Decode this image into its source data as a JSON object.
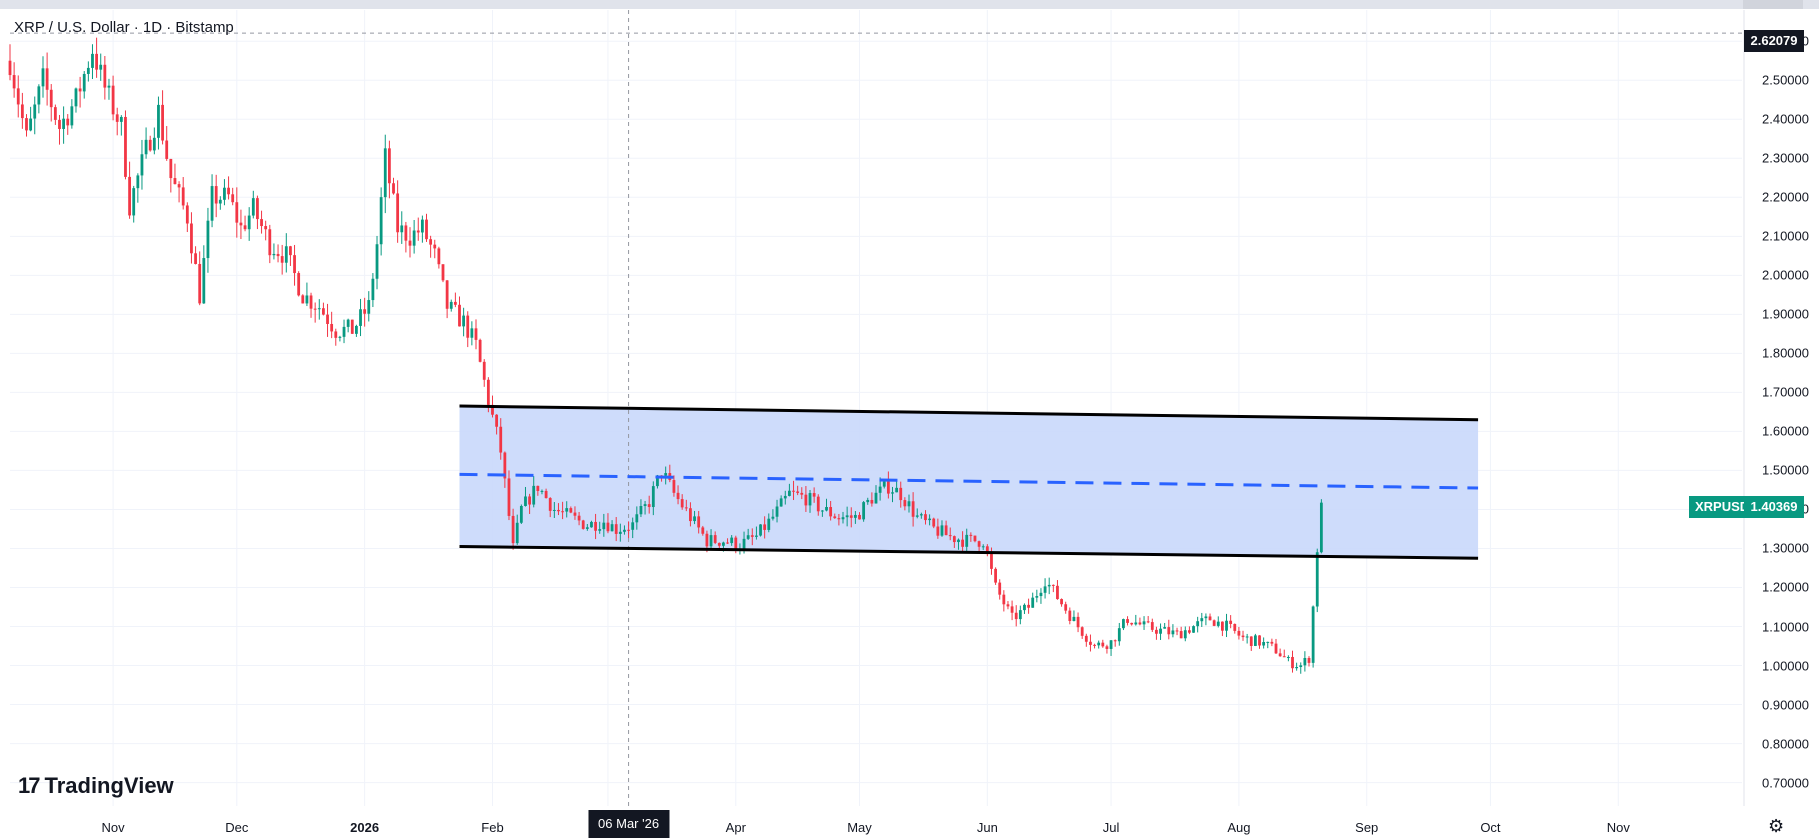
{
  "header": {
    "title": "XRP / U.S. Dollar · 1D · Bitstamp"
  },
  "brand": {
    "logo": "17",
    "name": "TradingView"
  },
  "crosshair": {
    "x_label": "06 Mar '26",
    "y_label": "2.62079"
  },
  "last_price": {
    "symbol": "XRPUSD",
    "value": "1.40369"
  },
  "settings": {
    "icon": "gear-icon"
  },
  "colors": {
    "up": "#089981",
    "down": "#f23645",
    "band": "#c9d8fb",
    "midline": "#2962ff",
    "border": "#000000"
  },
  "chart_data": {
    "type": "candlestick",
    "title": "XRP / U.S. Dollar · 1D · Bitstamp",
    "ylim": [
      0.64,
      2.68
    ],
    "yticks": [
      "0.70000",
      "0.80000",
      "0.90000",
      "1.00000",
      "1.10000",
      "1.20000",
      "1.30000",
      "1.40000",
      "1.50000",
      "1.60000",
      "1.70000",
      "1.80000",
      "1.90000",
      "2.00000",
      "2.10000",
      "2.20000",
      "2.30000",
      "2.40000",
      "2.50000",
      "2.60000"
    ],
    "xticks": [
      {
        "label": "Nov",
        "date": "2025-11-01"
      },
      {
        "label": "Dec",
        "date": "2025-12-01"
      },
      {
        "label": "2026",
        "date": "2026-01-01",
        "bold": true
      },
      {
        "label": "Feb",
        "date": "2026-02-01"
      },
      {
        "label": "Mar",
        "date": "2026-03-01",
        "hidden_by_crosshair": true
      },
      {
        "label": "Apr",
        "date": "2026-04-01"
      },
      {
        "label": "May",
        "date": "2026-05-01"
      },
      {
        "label": "Jun",
        "date": "2026-06-01"
      },
      {
        "label": "Jul",
        "date": "2026-07-01"
      },
      {
        "label": "Aug",
        "date": "2026-08-01"
      },
      {
        "label": "Sep",
        "date": "2026-09-01"
      },
      {
        "label": "Oct",
        "date": "2026-10-01"
      },
      {
        "label": "Nov",
        "date": "2026-11-01"
      }
    ],
    "xrange": [
      "2025-10-07",
      "2026-12-01"
    ],
    "path": [
      [
        "2025-10-07",
        2.55
      ],
      [
        "2025-10-11",
        2.35
      ],
      [
        "2025-10-15",
        2.5
      ],
      [
        "2025-10-19",
        2.38
      ],
      [
        "2025-10-23",
        2.45
      ],
      [
        "2025-10-27",
        2.58
      ],
      [
        "2025-10-30",
        2.48
      ],
      [
        "2025-11-03",
        2.38
      ],
      [
        "2025-11-05",
        2.18
      ],
      [
        "2025-11-09",
        2.32
      ],
      [
        "2025-11-12",
        2.42
      ],
      [
        "2025-11-15",
        2.25
      ],
      [
        "2025-11-19",
        2.15
      ],
      [
        "2025-11-22",
        1.95
      ],
      [
        "2025-11-25",
        2.2
      ],
      [
        "2025-11-29",
        2.2
      ],
      [
        "2025-12-02",
        2.12
      ],
      [
        "2025-12-05",
        2.17
      ],
      [
        "2025-12-09",
        2.08
      ],
      [
        "2025-12-13",
        2.05
      ],
      [
        "2025-12-17",
        1.95
      ],
      [
        "2025-12-21",
        1.92
      ],
      [
        "2025-12-25",
        1.86
      ],
      [
        "2025-12-29",
        1.86
      ],
      [
        "2026-01-02",
        1.92
      ],
      [
        "2026-01-04",
        2.08
      ],
      [
        "2026-01-06",
        2.3
      ],
      [
        "2026-01-09",
        2.12
      ],
      [
        "2026-01-12",
        2.1
      ],
      [
        "2026-01-15",
        2.12
      ],
      [
        "2026-01-18",
        2.05
      ],
      [
        "2026-01-21",
        1.92
      ],
      [
        "2026-01-25",
        1.88
      ],
      [
        "2026-01-28",
        1.82
      ],
      [
        "2026-01-31",
        1.68
      ],
      [
        "2026-02-03",
        1.55
      ],
      [
        "2026-02-06",
        1.3
      ],
      [
        "2026-02-08",
        1.4
      ],
      [
        "2026-02-12",
        1.46
      ],
      [
        "2026-02-16",
        1.4
      ],
      [
        "2026-02-20",
        1.38
      ],
      [
        "2026-02-24",
        1.36
      ],
      [
        "2026-02-28",
        1.37
      ],
      [
        "2026-03-03",
        1.35
      ],
      [
        "2026-03-07",
        1.36
      ],
      [
        "2026-03-11",
        1.42
      ],
      [
        "2026-03-14",
        1.5
      ],
      [
        "2026-03-17",
        1.44
      ],
      [
        "2026-03-21",
        1.38
      ],
      [
        "2026-03-25",
        1.32
      ],
      [
        "2026-03-29",
        1.32
      ],
      [
        "2026-04-02",
        1.31
      ],
      [
        "2026-04-06",
        1.33
      ],
      [
        "2026-04-10",
        1.38
      ],
      [
        "2026-04-14",
        1.44
      ],
      [
        "2026-04-18",
        1.43
      ],
      [
        "2026-04-22",
        1.4
      ],
      [
        "2026-04-26",
        1.38
      ],
      [
        "2026-04-30",
        1.38
      ],
      [
        "2026-05-04",
        1.43
      ],
      [
        "2026-05-08",
        1.46
      ],
      [
        "2026-05-11",
        1.44
      ],
      [
        "2026-05-15",
        1.38
      ],
      [
        "2026-05-19",
        1.35
      ],
      [
        "2026-05-23",
        1.33
      ],
      [
        "2026-05-27",
        1.32
      ],
      [
        "2026-05-31",
        1.32
      ],
      [
        "2026-06-03",
        1.2
      ],
      [
        "2026-06-07",
        1.12
      ],
      [
        "2026-06-11",
        1.15
      ],
      [
        "2026-06-15",
        1.22
      ],
      [
        "2026-06-19",
        1.16
      ],
      [
        "2026-06-23",
        1.1
      ],
      [
        "2026-06-27",
        1.05
      ],
      [
        "2026-07-01",
        1.06
      ],
      [
        "2026-07-05",
        1.12
      ],
      [
        "2026-07-09",
        1.1
      ],
      [
        "2026-07-13",
        1.09
      ],
      [
        "2026-07-17",
        1.08
      ],
      [
        "2026-07-21",
        1.1
      ],
      [
        "2026-07-25",
        1.12
      ],
      [
        "2026-07-29",
        1.1
      ],
      [
        "2026-08-02",
        1.07
      ],
      [
        "2026-08-06",
        1.06
      ],
      [
        "2026-08-10",
        1.04
      ],
      [
        "2026-08-13",
        1.01
      ],
      [
        "2026-08-16",
        1.0
      ],
      [
        "2026-08-18",
        1.02
      ],
      [
        "2026-08-19",
        1.15
      ],
      [
        "2026-08-20",
        1.3
      ],
      [
        "2026-08-21",
        1.40369
      ]
    ],
    "channel": {
      "upper": [
        [
          "2026-01-24",
          1.665
        ],
        [
          "2026-09-28",
          1.63
        ]
      ],
      "lower": [
        [
          "2026-01-24",
          1.305
        ],
        [
          "2026-09-28",
          1.275
        ]
      ],
      "mid": [
        [
          "2026-01-24",
          1.49
        ],
        [
          "2026-09-28",
          1.455
        ]
      ]
    },
    "crosshair_price": 2.62079,
    "crosshair_date": "2026-03-06",
    "last_close": 1.40369
  }
}
